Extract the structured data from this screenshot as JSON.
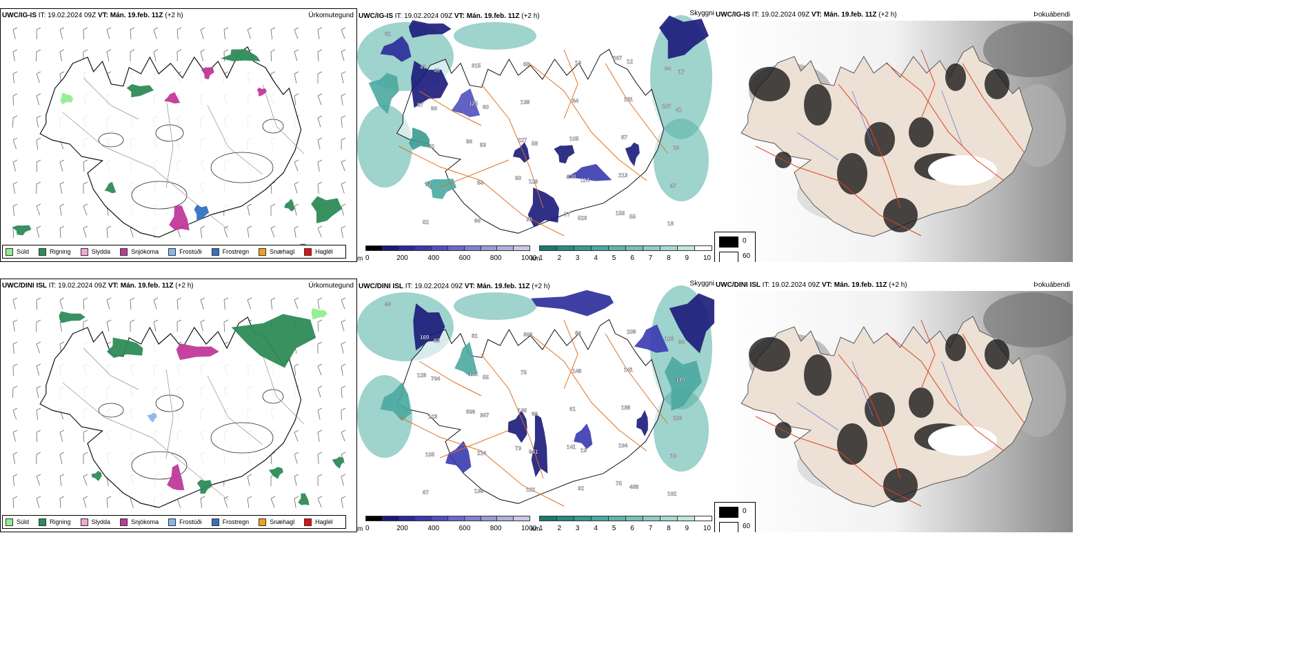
{
  "rows": [
    {
      "precip": {
        "model": "UWC/IG-IS",
        "it_label": "IT:",
        "it_value": "19.02.2024 09Z",
        "vt_label": "VT:",
        "vt_value": "Mán. 19.feb. 11Z",
        "lead": "(+2 h)",
        "title": "Úrkomutegund"
      },
      "cloud": {
        "model": "UWC/IG-IS",
        "it_label": "IT:",
        "it_value": "19.02.2024 09Z",
        "vt_label": "VT:",
        "vt_value": "Mán. 19.feb. 11Z",
        "lead": "(+2 h)",
        "title": "Skyggni",
        "labels": [
          "81",
          "49",
          "60",
          "58",
          "114",
          "55",
          "17",
          "66",
          "83",
          "120",
          "523",
          "12",
          "41",
          "72",
          "84",
          "30",
          "13",
          "181",
          "23",
          "52",
          "66",
          "68",
          "84",
          "87",
          "97",
          "52",
          "315",
          "138",
          "105",
          "213",
          "18",
          "47",
          "125",
          "227",
          "238",
          "150",
          "94",
          "87",
          "96",
          "90",
          "77",
          "267",
          "207"
        ]
      },
      "fog": {
        "model": "UWC/IG-IS",
        "it_label": "IT:",
        "it_value": "19.02.2024 09Z",
        "vt_label": "VT:",
        "vt_value": "Mán. 19.feb. 11Z",
        "lead": "(+2 h)",
        "title": "Þokuábendi"
      }
    },
    {
      "precip": {
        "model": "UWC/DINI ISL",
        "it_label": "IT:",
        "it_value": "19.02.2024 09Z",
        "vt_label": "VT:",
        "vt_value": "Mán. 19.feb. 11Z",
        "lead": "(+2 h)",
        "title": "Úrkomutegund"
      },
      "cloud": {
        "model": "UWC/DINI ISL",
        "it_label": "IT:",
        "it_value": "19.02.2024 09Z",
        "vt_label": "VT:",
        "vt_value": "Mán. 19.feb. 11Z",
        "lead": "(+2 h)",
        "title": "Skyggni",
        "labels": [
          "43",
          "83",
          "55",
          "66",
          "19",
          "488",
          "86",
          "764",
          "367",
          "941",
          "32",
          "208",
          "149",
          "123",
          "214",
          "162",
          "86",
          "141",
          "200",
          "105",
          "138",
          "360",
          "148",
          "188",
          "16",
          "67",
          "81",
          "75",
          "61",
          "164",
          "162",
          "169",
          "122",
          "130",
          "141",
          "75",
          "100",
          "128",
          "896",
          "73"
        ]
      },
      "fog": {
        "model": "UWC/DINI ISL",
        "it_label": "IT:",
        "it_value": "19.02.2024 09Z",
        "vt_label": "VT:",
        "vt_value": "Mán. 19.feb. 11Z",
        "lead": "(+2 h)",
        "title": "Þokuábendi"
      }
    }
  ],
  "precip_legend": [
    {
      "label": "Súld",
      "color": "#90ee90"
    },
    {
      "label": "Rigning",
      "color": "#2e8b57"
    },
    {
      "label": "Slydda",
      "color": "#f4a7d0"
    },
    {
      "label": "Snjókoma",
      "color": "#c0399a"
    },
    {
      "label": "Frostúði",
      "color": "#87b8ec"
    },
    {
      "label": "Frostregn",
      "color": "#3472c0"
    },
    {
      "label": "Snæhagl",
      "color": "#f0a020"
    },
    {
      "label": "Haglél",
      "color": "#e01010"
    }
  ],
  "height_scale": {
    "unit": "m",
    "ticks": [
      "0",
      "200",
      "400",
      "600",
      "800",
      "1000"
    ],
    "colors": [
      "#000000",
      "#1a1a7a",
      "#2a2a9a",
      "#3a3ab0",
      "#5050c0",
      "#6a6ac8",
      "#8080d0",
      "#9a9ad8",
      "#b0b0e0",
      "#c8c8ea"
    ]
  },
  "visibility_scale": {
    "unit": "km",
    "ticks": [
      "1",
      "2",
      "3",
      "4",
      "5",
      "6",
      "7",
      "8",
      "9",
      "10"
    ],
    "colors": [
      "#1a7a70",
      "#2a8a80",
      "#3a9a90",
      "#4aa8a0",
      "#60b4ac",
      "#78c0b8",
      "#90ccc4",
      "#a8d8d0",
      "#c0e4de",
      "#ffffff"
    ]
  },
  "fog_legend": {
    "black": "0",
    "white": "60"
  }
}
